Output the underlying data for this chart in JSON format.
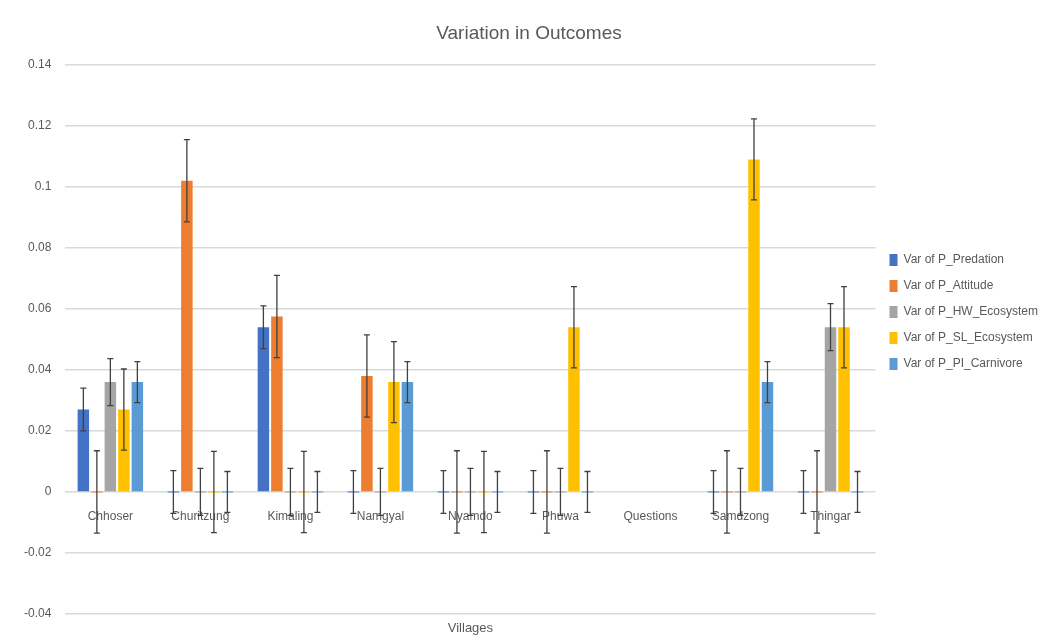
{
  "chart_data": {
    "type": "bar",
    "title": "Variation in Outcomes",
    "xlabel": "Villages",
    "categories": [
      "Chhoser",
      "Churitzung",
      "Kimaling",
      "Namgyal",
      "Nyamdo",
      "Phuwa",
      "Questions",
      "Samdzong",
      "Thingar"
    ],
    "series": [
      {
        "name": "Var of P_Predation",
        "color": "#4472c4",
        "values": [
          0.027,
          0,
          0.054,
          0,
          0,
          0,
          null,
          0,
          0
        ],
        "errors": [
          0.007,
          0.007,
          0.007,
          0.007,
          0.007,
          0.007,
          null,
          0.007,
          0.007
        ]
      },
      {
        "name": "Var of P_Attitude",
        "color": "#ed7d31",
        "values": [
          0,
          0.102,
          0.0575,
          0.038,
          0,
          0,
          null,
          0,
          0
        ],
        "errors": [
          0.0135,
          0.0135,
          0.0135,
          0.0135,
          0.0135,
          0.0135,
          null,
          0.0135,
          0.0135
        ]
      },
      {
        "name": "Var of P_HW_Ecosystem",
        "color": "#a5a5a5",
        "values": [
          0.036,
          0,
          0,
          0,
          0,
          0,
          null,
          0,
          0.054
        ],
        "errors": [
          0.0077,
          0.0077,
          0.0077,
          0.0077,
          0.0077,
          0.0077,
          null,
          0.0077,
          0.0077
        ]
      },
      {
        "name": "Var of P_SL_Ecosystem",
        "color": "#ffc000",
        "values": [
          0.027,
          0,
          0,
          0.036,
          0,
          0.054,
          null,
          0.109,
          0.054
        ],
        "errors": [
          0.0133,
          0.0133,
          0.0133,
          0.0133,
          0.0133,
          0.0133,
          null,
          0.0133,
          0.0133
        ]
      },
      {
        "name": "Var of P_PI_Carnivore",
        "color": "#5b9bd5",
        "values": [
          0.036,
          0,
          0,
          0.036,
          0,
          0,
          null,
          0.036,
          0
        ],
        "errors": [
          0.0067,
          0.0067,
          0.0067,
          0.0067,
          0.0067,
          0.0067,
          null,
          0.0067,
          0.0067
        ]
      }
    ],
    "ylim": [
      -0.04,
      0.14
    ],
    "yticks": [
      -0.04,
      -0.02,
      0,
      0.02,
      0.04,
      0.06,
      0.08,
      0.1,
      0.12,
      0.14
    ],
    "grid": "y",
    "legend": "right"
  }
}
